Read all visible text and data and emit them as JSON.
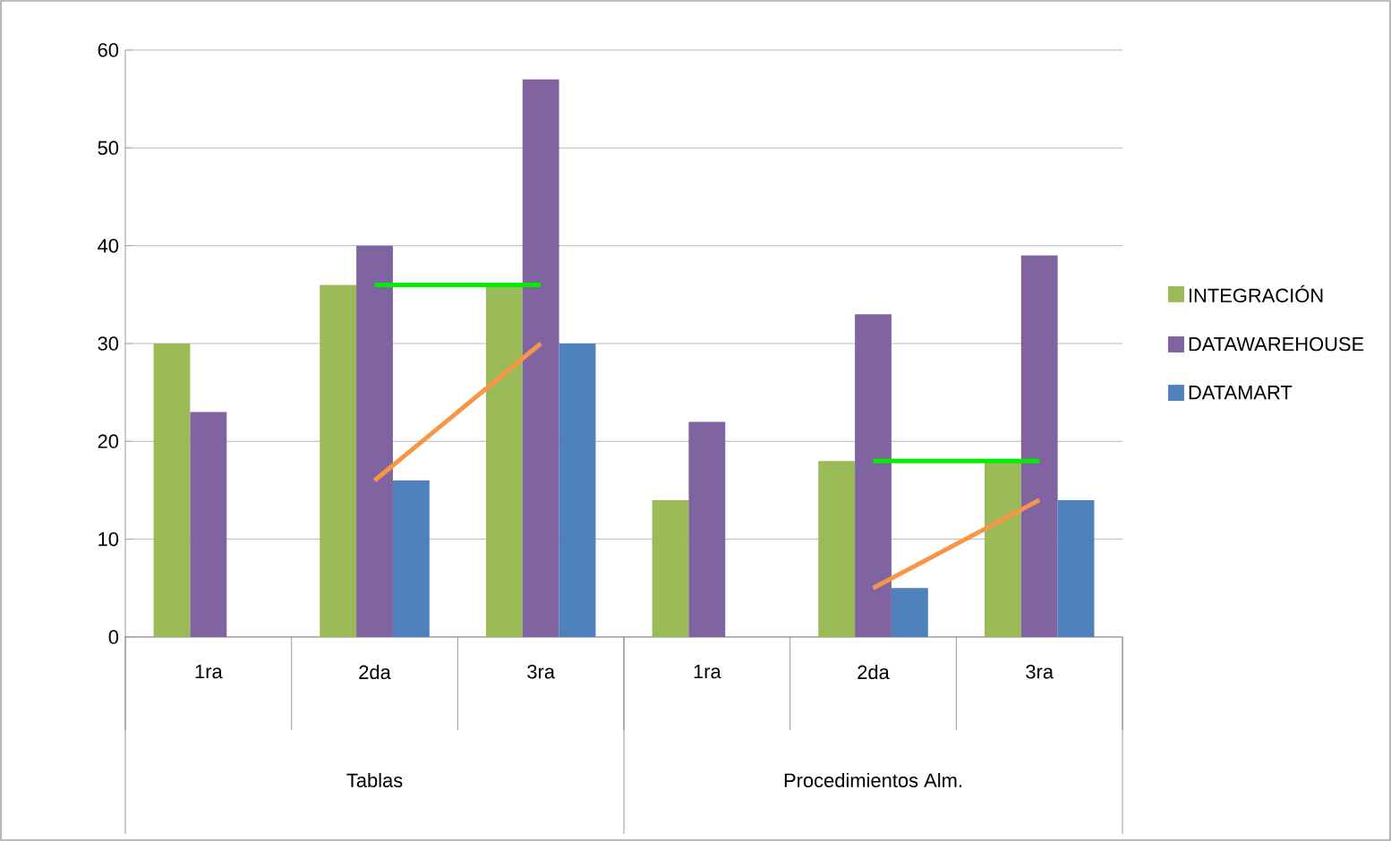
{
  "chart_data": {
    "type": "bar",
    "categories": [
      "1ra",
      "2da",
      "3ra",
      "1ra",
      "2da",
      "3ra"
    ],
    "series": [
      {
        "name": "INTEGRACIÓN",
        "color": "#9bbb59",
        "values": [
          30,
          36,
          36,
          14,
          18,
          18
        ]
      },
      {
        "name": "DATAWAREHOUSE",
        "color": "#8064a2",
        "values": [
          23,
          40,
          57,
          22,
          33,
          39
        ]
      },
      {
        "name": "DATAMART",
        "color": "#4f81bd",
        "values": [
          null,
          16,
          30,
          null,
          5,
          14
        ]
      },
      {
        "type": "line",
        "color": "#00ee00",
        "values": [
          null,
          36,
          36,
          null,
          18,
          18
        ]
      },
      {
        "type": "line",
        "color": "#f79646",
        "values": [
          null,
          16,
          30,
          null,
          5,
          14
        ]
      }
    ],
    "annotations": [
      "Tablas",
      "Procedimientos Alm."
    ],
    "ylim": [
      0,
      60
    ],
    "yticks": [
      0,
      10,
      20,
      30,
      40,
      50,
      60
    ],
    "grid": "y",
    "legend": "right"
  }
}
